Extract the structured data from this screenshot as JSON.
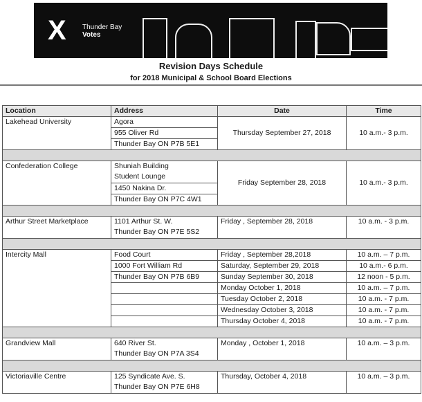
{
  "banner": {
    "logo_mark": "X",
    "logo_line1": "Thunder Bay",
    "logo_line2": "Votes"
  },
  "title": "Revision Days Schedule",
  "subtitle": "for 2018 Municipal & School Board Elections",
  "headers": {
    "location": "Location",
    "address": "Address",
    "date": "Date",
    "time": "Time"
  },
  "rows": {
    "lakehead": {
      "location": "Lakehead  University",
      "address": [
        "Agora",
        "955 Oliver Rd",
        "Thunder Bay  ON P7B 5E1"
      ],
      "date": "Thursday September 27, 2018",
      "time": "10 a.m.- 3 p.m."
    },
    "confederation": {
      "location": "Confederation College",
      "address": [
        "Shuniah Building",
        "Student Lounge",
        "1450 Nakina Dr.",
        "Thunder Bay  ON P7C 4W1"
      ],
      "date": "Friday September 28, 2018",
      "time": "10 a.m.- 3 p.m."
    },
    "arthur": {
      "location": "Arthur Street Marketplace",
      "address": [
        "1101 Arthur St. W.",
        "Thunder Bay  ON P7E 5S2"
      ],
      "date": "Friday , September 28, 2018",
      "time": "10 a.m. - 3 p.m."
    },
    "intercity": {
      "location": "Intercity Mall",
      "address": [
        "Food Court",
        "1000 Fort William Rd",
        "Thunder Bay ON P7B 6B9"
      ],
      "dates": [
        "Friday , September 28,2018",
        "Saturday, September 29, 2018",
        "Sunday September 30, 2018",
        "Monday October 1, 2018",
        "Tuesday October 2, 2018",
        "Wednesday October 3, 2018",
        "Thursday October 4, 2018"
      ],
      "times": [
        "10 a.m. – 7 p.m.",
        "10 a.m.- 6 p.m.",
        "12 noon  - 5 p.m.",
        "10 a.m. – 7 p.m.",
        "10 a.m. - 7 p.m.",
        "10 a.m. - 7 p.m.",
        "10 a.m. - 7 p.m."
      ]
    },
    "grandview": {
      "location": "Grandview Mall",
      "address": [
        "640 River St.",
        "Thunder Bay  ON P7A 3S4"
      ],
      "date": "Monday , October 1, 2018",
      "time": "10 a.m. – 3 p.m."
    },
    "victoriaville": {
      "location": "Victoriaville Centre",
      "address": [
        "125  Syndicate Ave. S.",
        "Thunder Bay  ON P7E 6H8"
      ],
      "date": "Thursday, October 4, 2018",
      "time": "10 a.m. – 3 p.m."
    }
  }
}
